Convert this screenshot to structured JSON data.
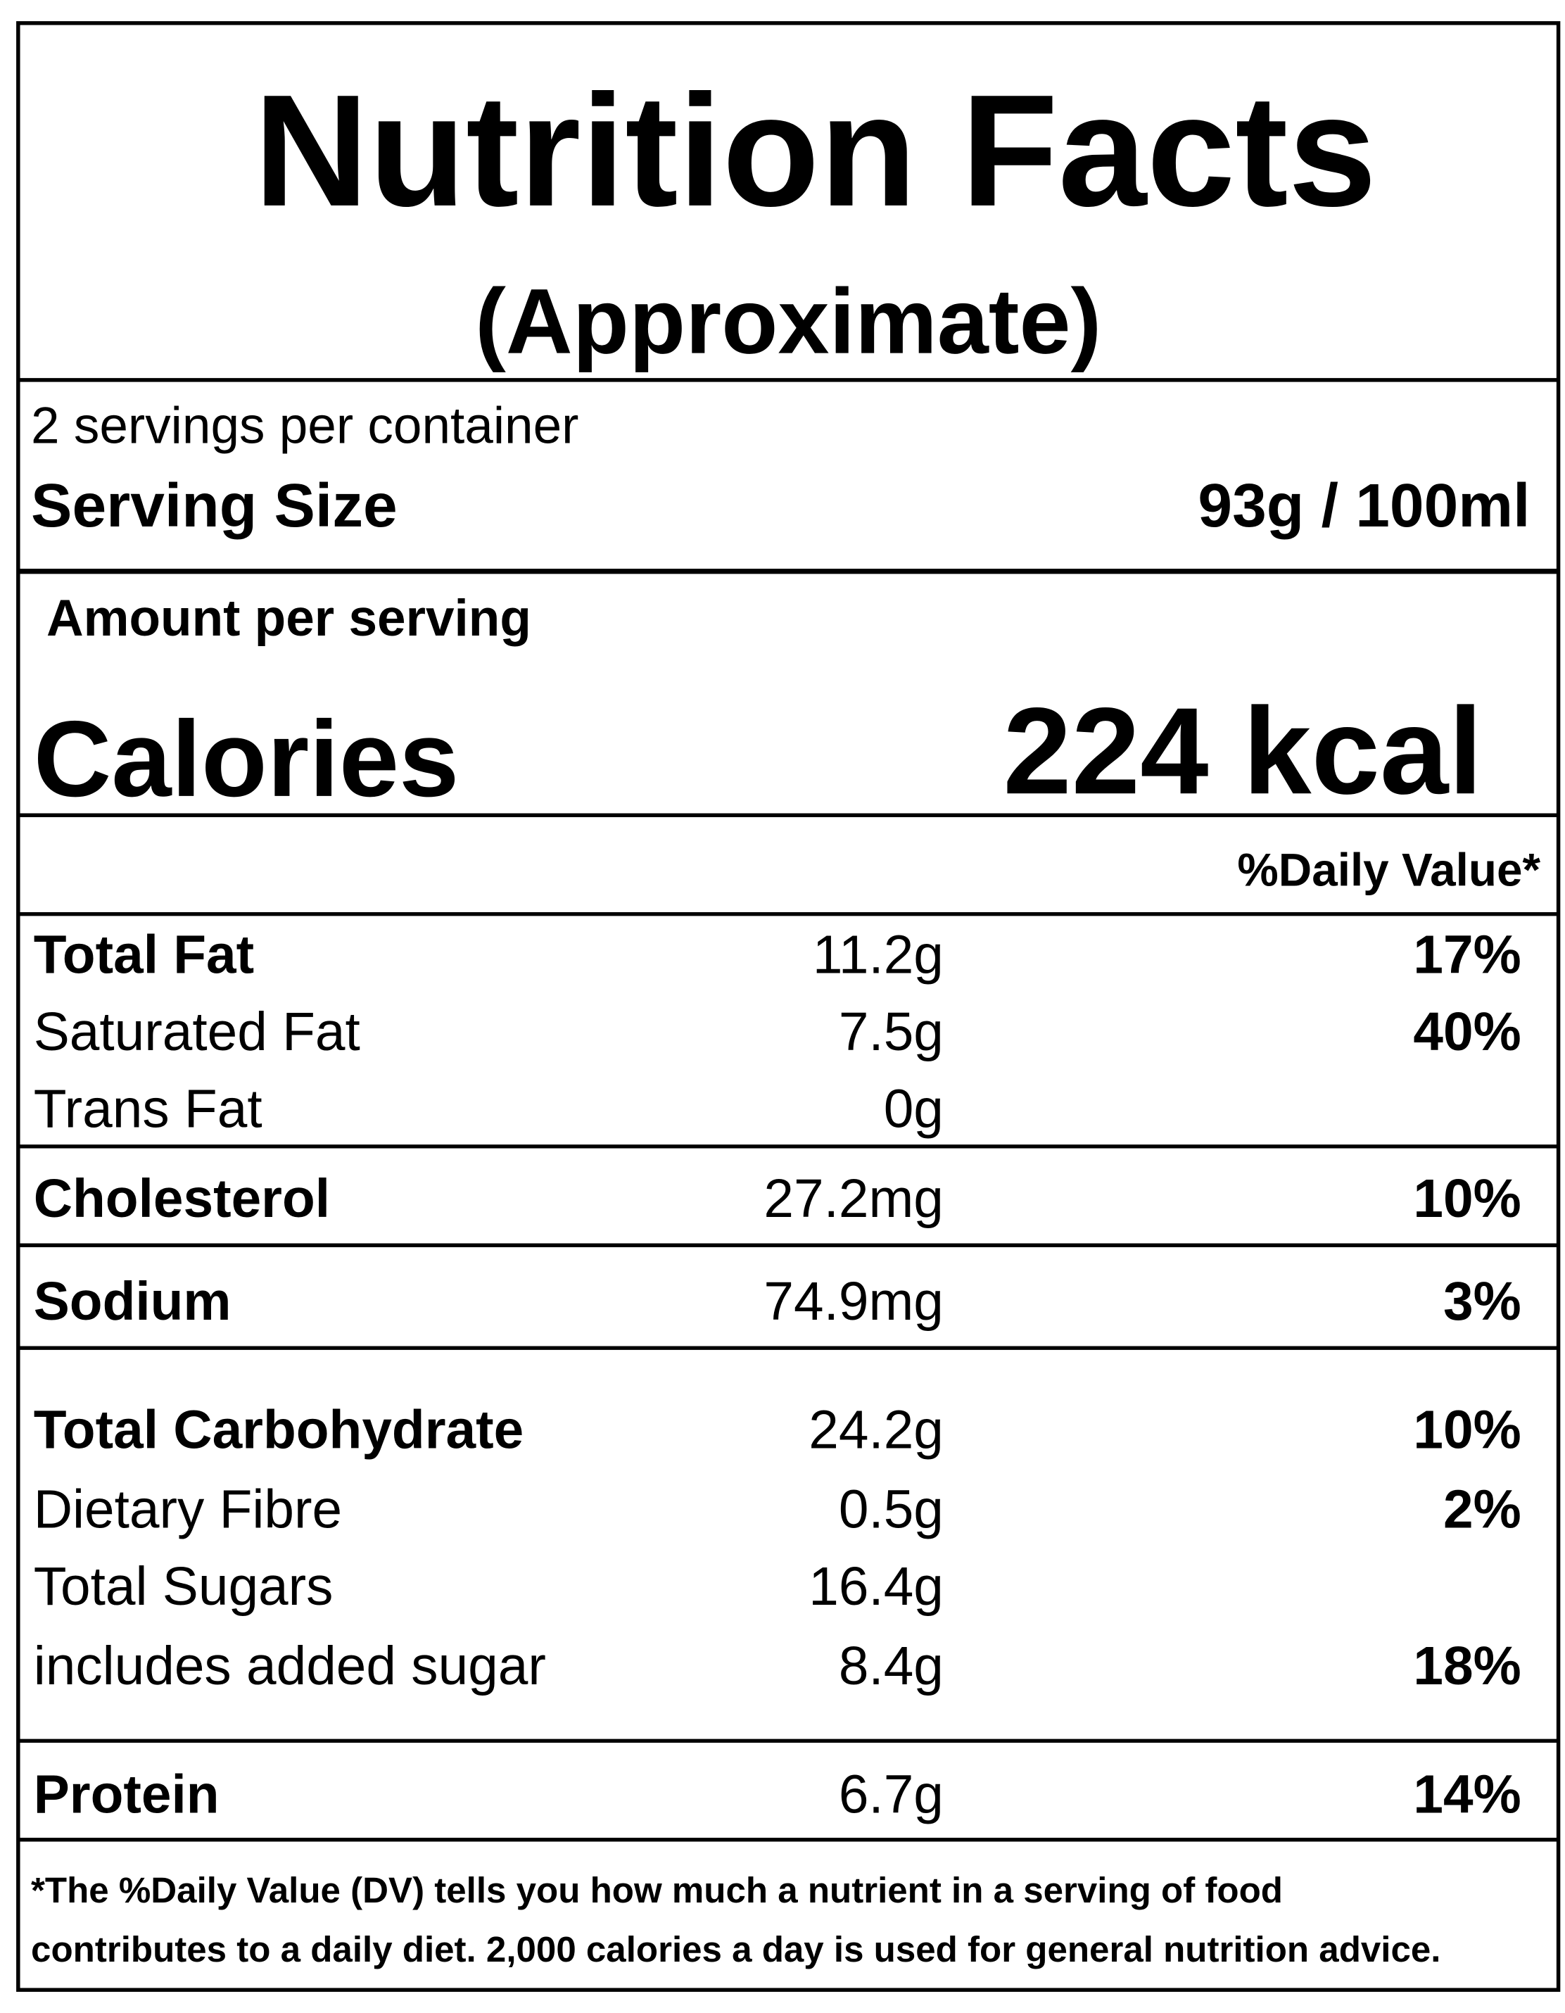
{
  "header": {
    "title": "Nutrition Facts",
    "subtitle": "(Approximate)"
  },
  "servings": {
    "per_container": "2 servings per container",
    "label": "Serving Size",
    "size": "93g / 100ml"
  },
  "amount_label": "Amount per serving",
  "calories": {
    "label": "Calories",
    "value": "224 kcal"
  },
  "dv_header": "%Daily Value*",
  "rows": [
    {
      "name": "Total Fat",
      "amount": "11.2g",
      "dv": "17%"
    },
    {
      "name": "Saturated Fat",
      "amount": "7.5g",
      "dv": "40%"
    },
    {
      "name": "Trans Fat",
      "amount": "0g"
    },
    {
      "name": "Cholesterol",
      "amount": "27.2mg",
      "dv": "10%"
    },
    {
      "name": "Sodium",
      "amount": "74.9mg",
      "dv": "3%"
    },
    {
      "name": "Total Carbohydrate",
      "amount": "24.2g",
      "dv": "10%"
    },
    {
      "name": "Dietary Fibre",
      "amount": "0.5g",
      "dv": "2%"
    },
    {
      "name": "Total Sugars",
      "amount": "16.4g"
    },
    {
      "name": "includes added sugar",
      "amount": "8.4g",
      "dv": "18%"
    },
    {
      "name": "Protein",
      "amount": "6.7g",
      "dv": "14%"
    }
  ],
  "footnote": [
    "*The %Daily Value (DV) tells you how much a nutrient in a serving of food",
    "contributes to a daily diet. 2,000 calories a day is used for general nutrition advice."
  ]
}
